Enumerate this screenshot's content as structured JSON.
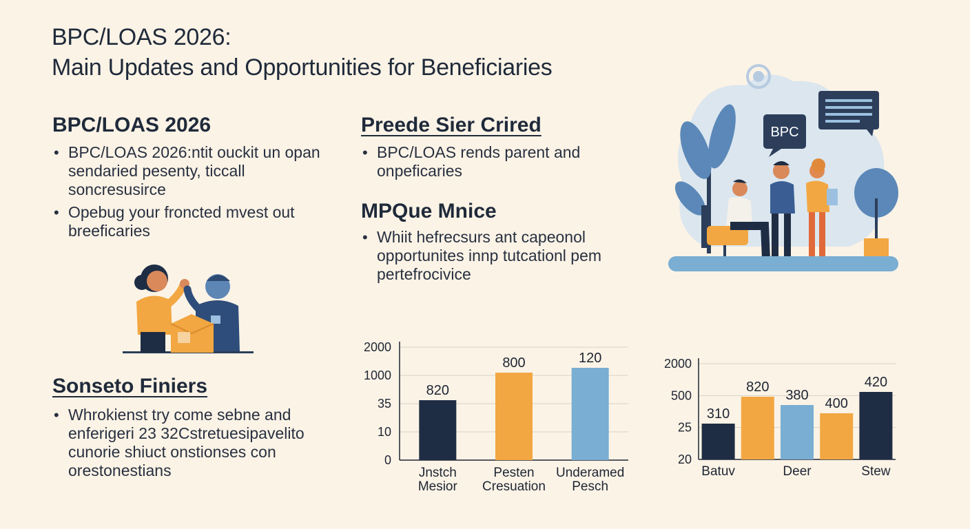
{
  "title": {
    "line1": "BPC/LOAS 2026:",
    "line2": "Main Updates and Opportunities for Beneficiaries"
  },
  "sections": {
    "s1": {
      "heading": "BPC/LOAS 2026",
      "bullets": [
        "BPC/LOAS 2026:ntit ouckit un opan sendaried pesenty, ticcall soncresusirce",
        "Opebug your froncted mvest out breeficaries"
      ]
    },
    "s2": {
      "heading": "Preede Sier Crired",
      "bullets": [
        "BPC/LOAS rends parent and onpeficaries"
      ]
    },
    "s3": {
      "heading": "MPQue Mnice",
      "bullets": [
        "Whiit hefrecsurs ant capeonol opportunites innp tutcationl pem pertefrocivice"
      ]
    },
    "s4": {
      "heading": "Sonseto Finiers",
      "bullets": [
        "Whrokienst try come sebne and enferigeri 23 32Cstretuesipavelito cunorie shiuct onstionses con orestonestians"
      ]
    }
  },
  "illustration": {
    "bubble_text": "BPC"
  },
  "colors": {
    "navy": "#1f2d44",
    "orange": "#f2a742",
    "blue": "#7aaed3",
    "background": "#fbf3e6"
  },
  "chart_data": [
    {
      "type": "bar",
      "title": "",
      "yticks": [
        "2000",
        "1000",
        "35",
        "10",
        "0"
      ],
      "categories": [
        "Jnstch\nMesior",
        "Pesten\nCresuation",
        "Underamed\nPesch"
      ],
      "values": [
        820,
        800,
        120
      ],
      "data_labels": [
        "820",
        "800",
        "120"
      ],
      "colors": [
        "#1f2d44",
        "#f2a742",
        "#7aaed3"
      ],
      "grid": true
    },
    {
      "type": "bar",
      "title": "",
      "yticks": [
        "2000",
        "500",
        "25",
        "20"
      ],
      "categories": [
        "Batuv",
        "",
        "Deer",
        "",
        "Stew"
      ],
      "values": [
        310,
        820,
        380,
        400,
        420
      ],
      "data_labels": [
        "310",
        "820",
        "380",
        "400",
        "420"
      ],
      "colors": [
        "#1f2d44",
        "#f2a742",
        "#7aaed3",
        "#f2a742",
        "#1f2d44"
      ],
      "grid": true
    }
  ]
}
